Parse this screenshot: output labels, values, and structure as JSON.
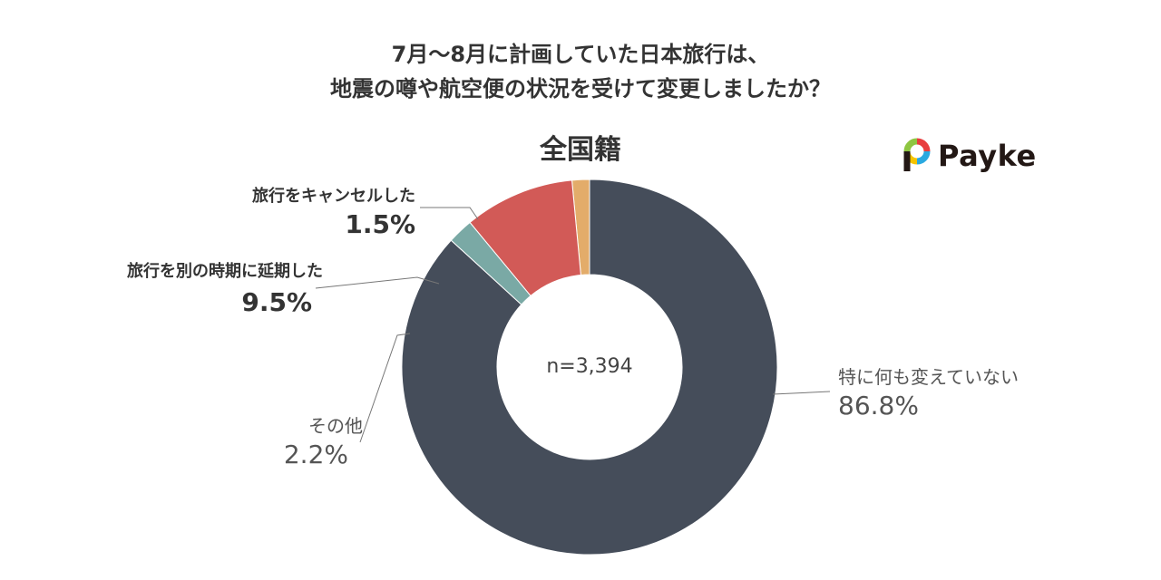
{
  "title_lines": [
    "7月〜8月に計画していた日本旅行は、",
    "地震の噂や航空便の状況を受けて変更しましたか？"
  ],
  "logo": {
    "text": "Payke"
  },
  "chart_data": {
    "type": "pie",
    "title": "全国籍",
    "center_label": "n=3,394",
    "slices": [
      {
        "label": "旅行をキャンセルした",
        "value": 1.5,
        "display": "1.5%",
        "color": "#E3AC6A"
      },
      {
        "label": "旅行を別の時期に延期した",
        "value": 9.5,
        "display": "9.5%",
        "color": "#D25A57"
      },
      {
        "label": "その他",
        "value": 2.2,
        "display": "2.2%",
        "color": "#7AA9A5"
      },
      {
        "label": "特に何も変えていない",
        "value": 86.8,
        "display": "86.8%",
        "color": "#454D5A"
      }
    ]
  }
}
